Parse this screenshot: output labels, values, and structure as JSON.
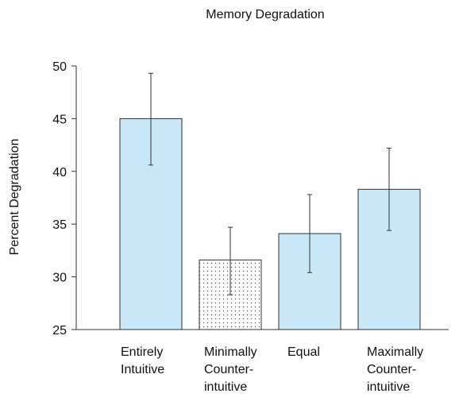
{
  "chart_data": {
    "type": "bar",
    "title": "Memory Degradation",
    "xlabel": "",
    "ylabel": "Percent Degradation",
    "ylim": [
      25,
      50
    ],
    "yticks": [
      25,
      30,
      35,
      40,
      45,
      50
    ],
    "categories": [
      [
        "Entirely",
        "Intuitive"
      ],
      [
        "Minimally",
        "Counter-",
        "intuitive"
      ],
      [
        "Equal"
      ],
      [
        "Maximally",
        "Counter-",
        "intuitive"
      ]
    ],
    "values": [
      45.0,
      31.6,
      34.1,
      38.3
    ],
    "error_low": [
      40.6,
      28.3,
      30.4,
      34.4
    ],
    "error_high": [
      49.3,
      34.7,
      37.8,
      42.2
    ],
    "bar_fills": [
      "#c8e8f8",
      "dotted",
      "#c8e8f8",
      "#c8e8f8"
    ],
    "grid": false,
    "legend": "none"
  }
}
